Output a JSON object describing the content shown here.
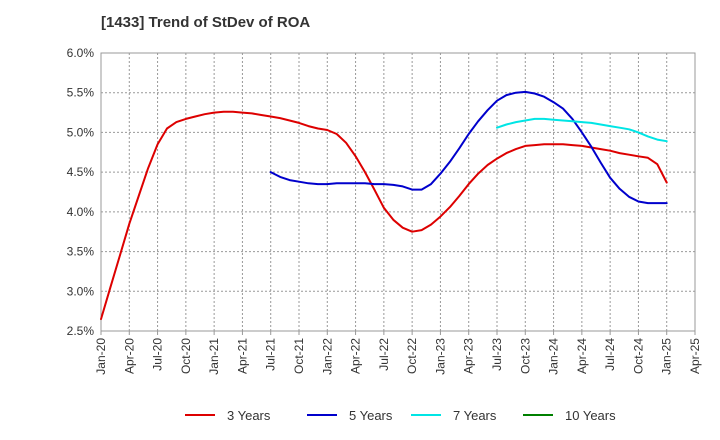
{
  "title": "[1433]  Trend of StDev of ROA",
  "chart_data": {
    "type": "line",
    "title": "[1433]  Trend of StDev of ROA",
    "xlabel": "",
    "ylabel": "",
    "x_ticks": [
      "Jan-20",
      "Apr-20",
      "Jul-20",
      "Oct-20",
      "Jan-21",
      "Apr-21",
      "Jul-21",
      "Oct-21",
      "Jan-22",
      "Apr-22",
      "Jul-22",
      "Oct-22",
      "Jan-23",
      "Apr-23",
      "Jul-23",
      "Oct-23",
      "Jan-24",
      "Apr-24",
      "Jul-24",
      "Oct-24",
      "Jan-25",
      "Apr-25"
    ],
    "y_ticks": [
      "2.5%",
      "3.0%",
      "3.5%",
      "4.0%",
      "4.5%",
      "5.0%",
      "5.5%",
      "6.0%"
    ],
    "ylim": [
      2.5,
      6.0
    ],
    "grid": true,
    "legend_position": "bottom",
    "series": [
      {
        "name": "3 Years",
        "color": "#dd0000",
        "x": [
          "2020-01",
          "2020-02",
          "2020-03",
          "2020-04",
          "2020-05",
          "2020-06",
          "2020-07",
          "2020-08",
          "2020-09",
          "2020-10",
          "2020-11",
          "2020-12",
          "2021-01",
          "2021-02",
          "2021-03",
          "2021-04",
          "2021-05",
          "2021-06",
          "2021-07",
          "2021-08",
          "2021-09",
          "2021-10",
          "2021-11",
          "2021-12",
          "2022-01",
          "2022-02",
          "2022-03",
          "2022-04",
          "2022-05",
          "2022-06",
          "2022-07",
          "2022-08",
          "2022-09",
          "2022-10",
          "2022-11",
          "2022-12",
          "2023-01",
          "2023-02",
          "2023-03",
          "2023-04",
          "2023-05",
          "2023-06",
          "2023-07",
          "2023-08",
          "2023-09",
          "2023-10",
          "2023-11",
          "2023-12",
          "2024-01",
          "2024-02",
          "2024-03",
          "2024-04",
          "2024-05",
          "2024-06",
          "2024-07",
          "2024-08",
          "2024-09",
          "2024-10",
          "2024-11",
          "2024-12",
          "2025-01"
        ],
        "values": [
          2.65,
          3.05,
          3.45,
          3.85,
          4.2,
          4.55,
          4.85,
          5.05,
          5.13,
          5.17,
          5.2,
          5.23,
          5.25,
          5.26,
          5.26,
          5.25,
          5.24,
          5.22,
          5.2,
          5.18,
          5.15,
          5.12,
          5.08,
          5.05,
          5.03,
          4.98,
          4.87,
          4.7,
          4.5,
          4.28,
          4.05,
          3.9,
          3.8,
          3.75,
          3.77,
          3.84,
          3.94,
          4.06,
          4.2,
          4.35,
          4.48,
          4.59,
          4.67,
          4.74,
          4.79,
          4.83,
          4.84,
          4.85,
          4.85,
          4.85,
          4.84,
          4.83,
          4.81,
          4.79,
          4.77,
          4.74,
          4.72,
          4.7,
          4.68,
          4.6,
          4.37
        ]
      },
      {
        "name": "5 Years",
        "color": "#0000cc",
        "x": [
          "2021-07",
          "2021-08",
          "2021-09",
          "2021-10",
          "2021-11",
          "2021-12",
          "2022-01",
          "2022-02",
          "2022-03",
          "2022-04",
          "2022-05",
          "2022-06",
          "2022-07",
          "2022-08",
          "2022-09",
          "2022-10",
          "2022-11",
          "2022-12",
          "2023-01",
          "2023-02",
          "2023-03",
          "2023-04",
          "2023-05",
          "2023-06",
          "2023-07",
          "2023-08",
          "2023-09",
          "2023-10",
          "2023-11",
          "2023-12",
          "2024-01",
          "2024-02",
          "2024-03",
          "2024-04",
          "2024-05",
          "2024-06",
          "2024-07",
          "2024-08",
          "2024-09",
          "2024-10",
          "2024-11",
          "2024-12",
          "2025-01"
        ],
        "values": [
          4.5,
          4.44,
          4.4,
          4.38,
          4.36,
          4.35,
          4.35,
          4.36,
          4.36,
          4.36,
          4.36,
          4.35,
          4.35,
          4.34,
          4.32,
          4.28,
          4.28,
          4.35,
          4.48,
          4.63,
          4.8,
          4.98,
          5.14,
          5.28,
          5.4,
          5.47,
          5.5,
          5.51,
          5.49,
          5.45,
          5.38,
          5.3,
          5.17,
          5.0,
          4.82,
          4.62,
          4.43,
          4.29,
          4.19,
          4.13,
          4.11,
          4.11,
          4.11
        ]
      },
      {
        "name": "7 Years",
        "color": "#00e5e5",
        "x": [
          "2023-07",
          "2023-08",
          "2023-09",
          "2023-10",
          "2023-11",
          "2023-12",
          "2024-01",
          "2024-02",
          "2024-03",
          "2024-04",
          "2024-05",
          "2024-06",
          "2024-07",
          "2024-08",
          "2024-09",
          "2024-10",
          "2024-11",
          "2024-12",
          "2025-01"
        ],
        "values": [
          5.06,
          5.1,
          5.13,
          5.15,
          5.17,
          5.17,
          5.16,
          5.15,
          5.14,
          5.13,
          5.12,
          5.1,
          5.08,
          5.06,
          5.04,
          5.0,
          4.95,
          4.91,
          4.89
        ]
      },
      {
        "name": "10 Years",
        "color": "#008000",
        "x": [],
        "values": []
      }
    ]
  }
}
